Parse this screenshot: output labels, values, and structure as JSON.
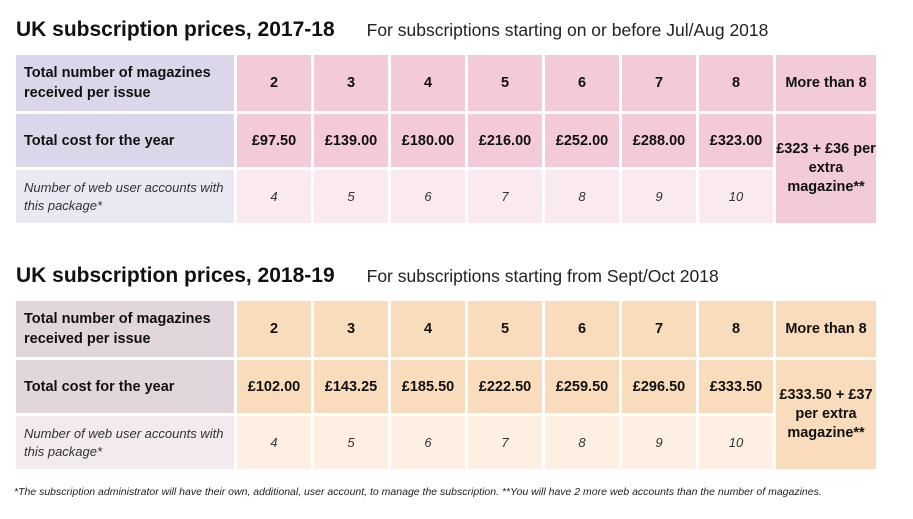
{
  "sections": [
    {
      "title": "UK subscription prices, 2017-18",
      "subtitle": "For subscriptions starting on or before Jul/Aug 2018",
      "row_labels": {
        "magazines": "Total number of magazines received per issue",
        "cost": "Total cost for the year",
        "accounts": "Number of web user accounts with this package*"
      },
      "columns": [
        "2",
        "3",
        "4",
        "5",
        "6",
        "7",
        "8"
      ],
      "costs": [
        "£97.50",
        "£139.00",
        "£180.00",
        "£216.00",
        "£252.00",
        "£288.00",
        "£323.00"
      ],
      "accounts": [
        "4",
        "5",
        "6",
        "7",
        "8",
        "9",
        "10"
      ],
      "more_than_label": "More than 8",
      "extra_price": "£323 + £36 per extra magazine**"
    },
    {
      "title": "UK subscription prices, 2018-19",
      "subtitle": "For subscriptions starting from Sept/Oct 2018",
      "row_labels": {
        "magazines": "Total number of magazines received per issue",
        "cost": "Total cost for the year",
        "accounts": "Number of web user accounts with this package*"
      },
      "columns": [
        "2",
        "3",
        "4",
        "5",
        "6",
        "7",
        "8"
      ],
      "costs": [
        "£102.00",
        "£143.25",
        "£185.50",
        "£222.50",
        "£259.50",
        "£296.50",
        "£333.50"
      ],
      "accounts": [
        "4",
        "5",
        "6",
        "7",
        "8",
        "9",
        "10"
      ],
      "more_than_label": "More than 8",
      "extra_price": "£333.50 + £37 per extra magazine**"
    }
  ],
  "footnote": "*The subscription administrator will have their own, additional, user account, to manage the subscription. **You will have 2 more web accounts than the number of magazines.",
  "colors": {
    "table1_accent": "#f3cbd7",
    "table1_label": "#dcd6ea",
    "table2_accent": "#f9dcbb",
    "table2_label": "#e1d6db"
  }
}
